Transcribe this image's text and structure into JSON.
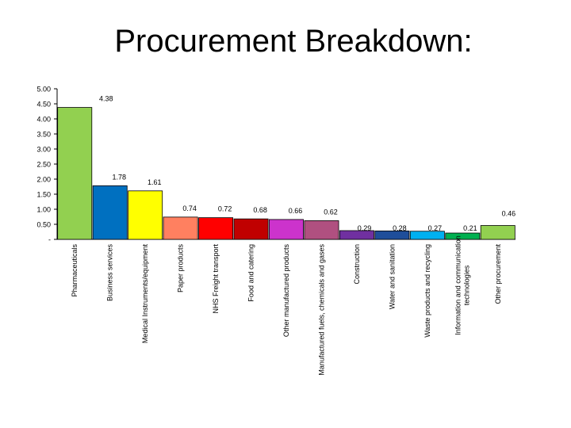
{
  "title": "Procurement Breakdown:",
  "chart_data": {
    "type": "bar",
    "title": "Procurement Breakdown:",
    "xlabel": "",
    "ylabel": "",
    "ylim": [
      0,
      5
    ],
    "y_ticks": [
      "-",
      "0.50",
      "1.00",
      "1.50",
      "2.00",
      "2.50",
      "3.00",
      "3.50",
      "4.00",
      "4.50",
      "5.00"
    ],
    "grid": false,
    "legend": "none",
    "categories": [
      "Pharmaceuticals",
      "Business services",
      "Medical Instruments/equipment",
      "Paper products",
      "NHS Freight transport",
      "Food and catering",
      "Other manufactured products",
      "Manufactured fuels, chemicals and gases",
      "Construction",
      "Water and sanitation",
      "Waste products and recycling",
      "Information and communication technologies",
      "Other procurement"
    ],
    "category_label_lines": [
      [
        "Pharmaceuticals"
      ],
      [
        "Business services"
      ],
      [
        "Medical Instruments/equipment"
      ],
      [
        "Paper products"
      ],
      [
        "NHS Freight transport"
      ],
      [
        "Food and catering"
      ],
      [
        "Other manufactured products"
      ],
      [
        "Manufactured fuels, chemicals and gases"
      ],
      [
        "Construction"
      ],
      [
        "Water and sanitation"
      ],
      [
        "Waste products and recycling"
      ],
      [
        "Information and communication",
        "technologies"
      ],
      [
        "Other procurement"
      ]
    ],
    "values": [
      4.38,
      1.78,
      1.61,
      0.74,
      0.72,
      0.68,
      0.66,
      0.62,
      0.29,
      0.28,
      0.27,
      0.21,
      0.46
    ],
    "value_labels": [
      "4.38",
      "1.78",
      "1.61",
      "0.74",
      "0.72",
      "0.68",
      "0.66",
      "0.62",
      "0.29",
      "0.28",
      "0.27",
      "0.21",
      "0.46"
    ],
    "colors": [
      "#92D050",
      "#0070C0",
      "#FFFF00",
      "#FF8060",
      "#FF0000",
      "#C00000",
      "#CC33CC",
      "#B05080",
      "#7030A0",
      "#1F4E9A",
      "#00B0F0",
      "#00B050",
      "#92D050"
    ]
  }
}
